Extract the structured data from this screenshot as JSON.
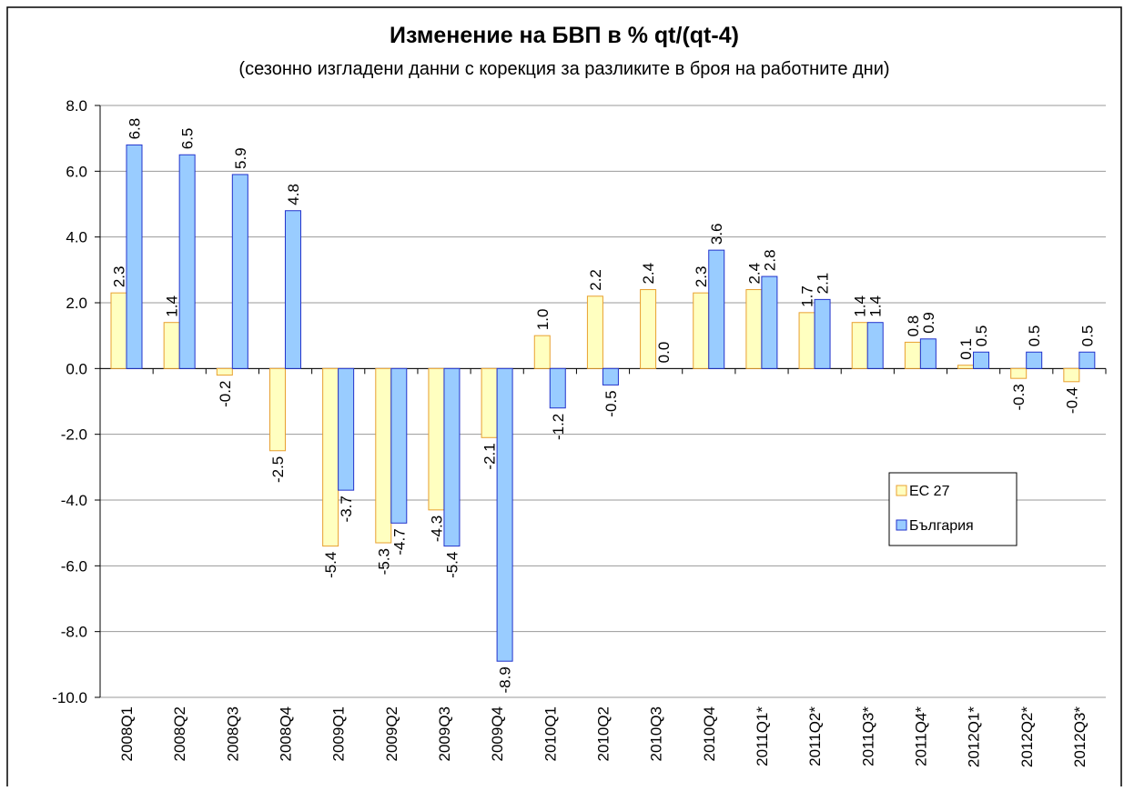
{
  "chart_data": {
    "type": "bar",
    "title": "Изменение на БВП в % qt/(qt-4)",
    "subtitle": "(сезонно изгладени данни с корекция за разликите в броя на работните дни)",
    "categories": [
      "2008Q1",
      "2008Q2",
      "2008Q3",
      "2008Q4",
      "2009Q1",
      "2009Q2",
      "2009Q3",
      "2009Q4",
      "2010Q1",
      "2010Q2",
      "2010Q3",
      "2010Q4",
      "2011Q1*",
      "2011Q2*",
      "2011Q3*",
      "2011Q4*",
      "2012Q1*",
      "2012Q2*",
      "2012Q3*"
    ],
    "series": [
      {
        "name": "ЕС 27",
        "color": "#ffffc0",
        "edge": "#e8a030",
        "values": [
          2.3,
          1.4,
          -0.2,
          -2.5,
          -5.4,
          -5.3,
          -4.3,
          -2.1,
          1.0,
          2.2,
          2.4,
          2.3,
          2.4,
          1.7,
          1.4,
          0.8,
          0.1,
          -0.3,
          -0.4
        ],
        "value_labels": [
          "2.3",
          "1.4",
          "-0.2",
          "-2.5",
          "-5.4",
          "-5.3",
          "-4.3",
          "-2.1",
          "1.0",
          "2.2",
          "2.4",
          "2.3",
          "2.4",
          "1.7",
          "1.4",
          "0.8",
          "0.1",
          "-0.3",
          "-0.4"
        ]
      },
      {
        "name": "България",
        "color": "#99ccff",
        "edge": "#2233cc",
        "values": [
          6.8,
          6.5,
          5.9,
          4.8,
          -3.7,
          -4.7,
          -5.4,
          -8.9,
          -1.2,
          -0.5,
          0.0,
          3.6,
          2.8,
          2.1,
          1.4,
          0.9,
          0.5,
          0.5,
          0.5
        ],
        "value_labels": [
          "6.8",
          "6.5",
          "5.9",
          "4.8",
          "-3.7",
          "-4.7",
          "-5.4",
          "-8.9",
          "-1.2",
          "-0.5",
          "0.0",
          "3.6",
          "2.8",
          "2.1",
          "1.4",
          "0.9",
          "0.5",
          "0.5",
          "0.5"
        ]
      }
    ],
    "ylim": [
      -10,
      8
    ],
    "yticks": [
      {
        "value": -10,
        "label": "-10.0"
      },
      {
        "value": -8,
        "label": "-8.0"
      },
      {
        "value": -6,
        "label": "-6.0"
      },
      {
        "value": -4,
        "label": "-4.0"
      },
      {
        "value": -2,
        "label": "-2.0"
      },
      {
        "value": 0,
        "label": "0.0"
      },
      {
        "value": 2,
        "label": "2.0"
      },
      {
        "value": 4,
        "label": "4.0"
      },
      {
        "value": 6,
        "label": "6.0"
      },
      {
        "value": 8,
        "label": "8.0"
      }
    ],
    "grid": true
  }
}
